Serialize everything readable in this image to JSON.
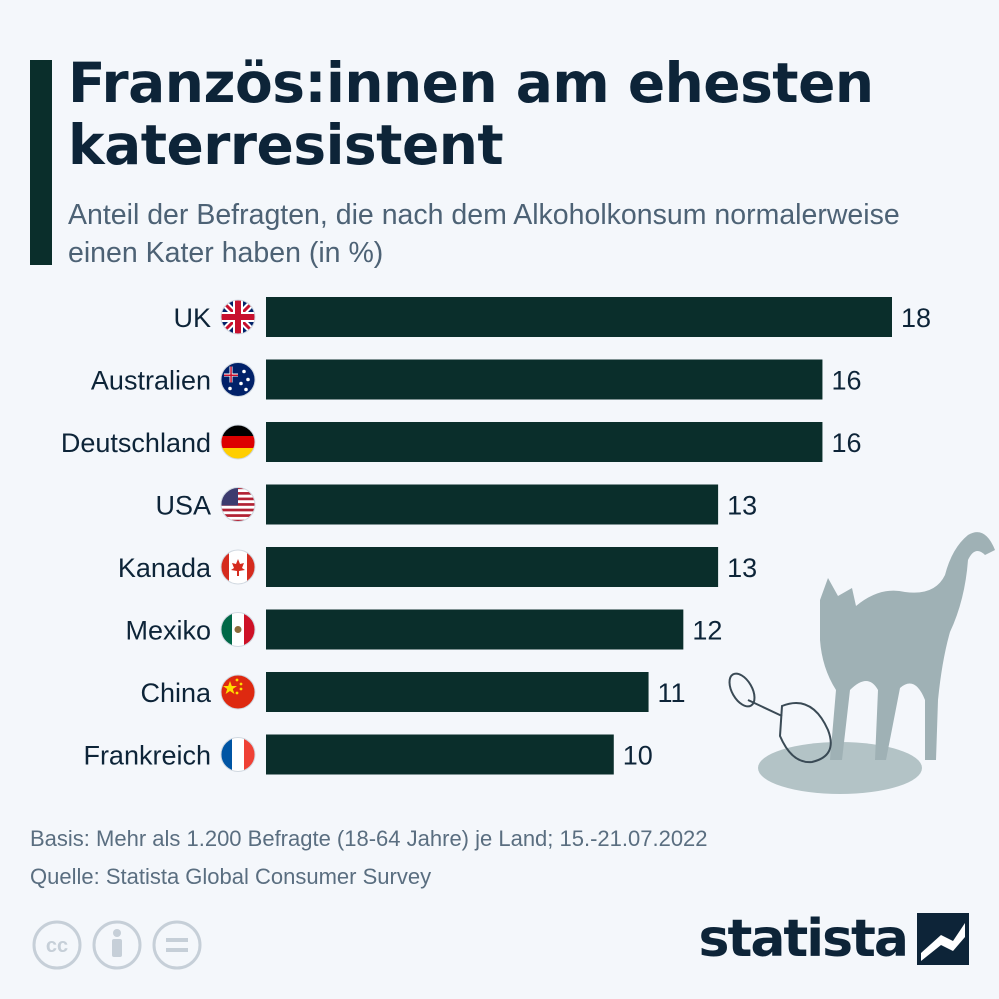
{
  "title": "Französ:innen am ehesten katerresistent",
  "subtitle": "Anteil der Befragten, die nach dem Alkoholkonsum normalerweise einen Kater haben (in %)",
  "chart_data": {
    "type": "bar",
    "orientation": "horizontal",
    "title": "Französ:innen am ehesten katerresistent",
    "subtitle": "Anteil der Befragten, die nach dem Alkoholkonsum normalerweise einen Kater haben (in %)",
    "categories": [
      "UK",
      "Australien",
      "Deutschland",
      "USA",
      "Kanada",
      "Mexiko",
      "China",
      "Frankreich"
    ],
    "values": [
      18,
      16,
      16,
      13,
      13,
      12,
      11,
      10
    ],
    "flags": [
      "uk",
      "australia",
      "germany",
      "usa",
      "canada",
      "mexico",
      "china",
      "france"
    ],
    "xlim": [
      0,
      18
    ],
    "grid": false,
    "legend": "none",
    "bar_color": "#0a2e2b"
  },
  "footer": {
    "basis": "Basis: Mehr als 1.200 Befragte (18-64 Jahre) je Land; 15.-21.07.2022",
    "source": "Quelle: Statista Global Consumer Survey"
  },
  "logo": {
    "text": "statista"
  },
  "icons": [
    "cc-icon",
    "by-icon",
    "nd-icon"
  ]
}
